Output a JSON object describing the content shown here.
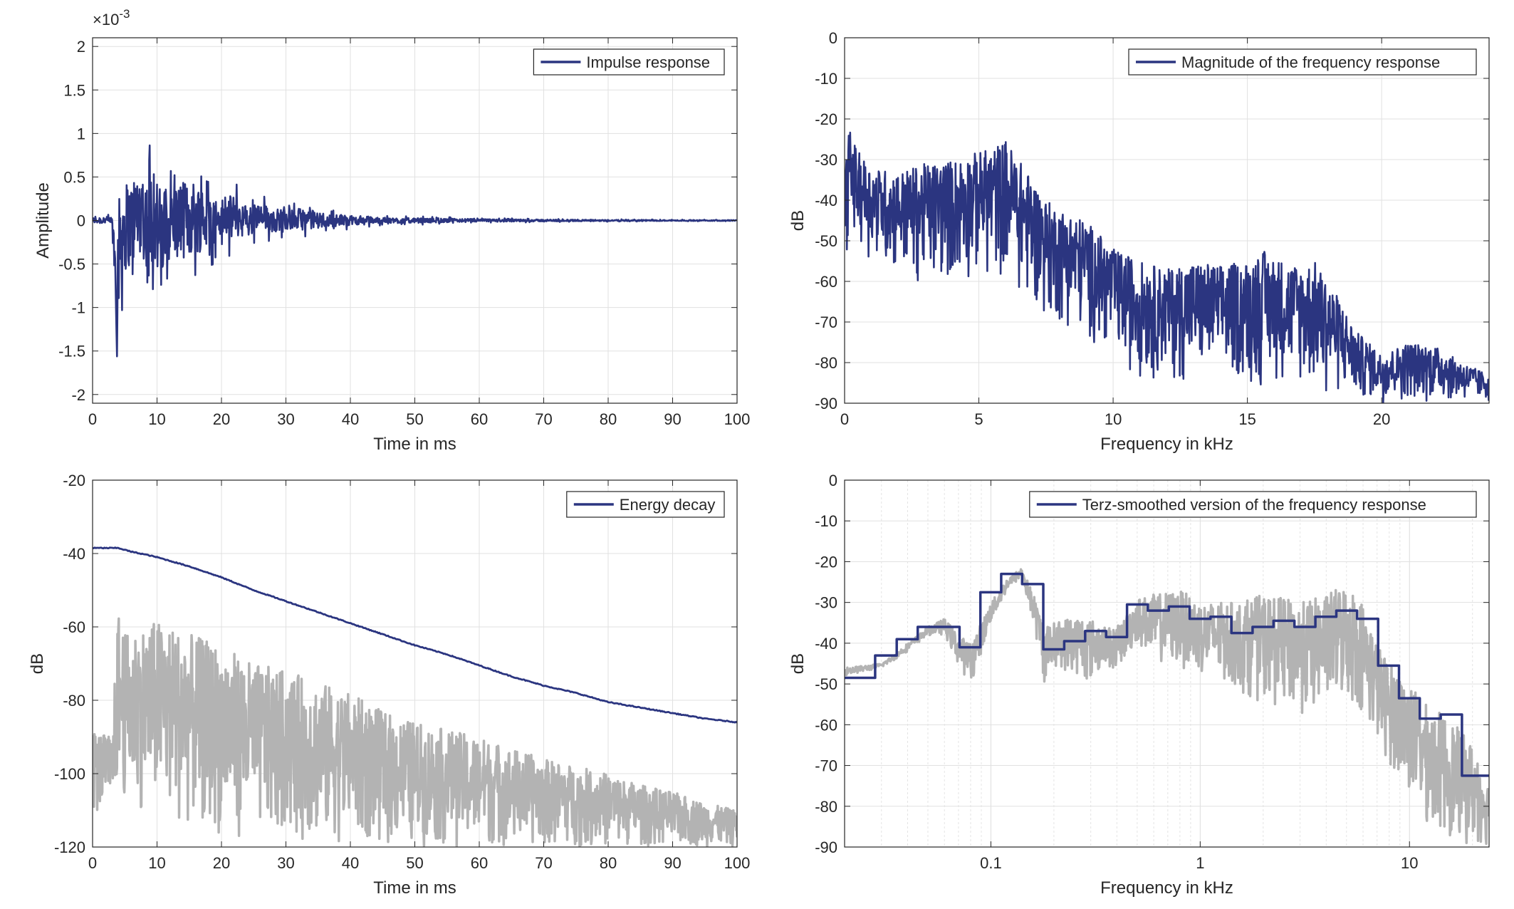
{
  "chart_data": [
    {
      "id": "impulse",
      "type": "line",
      "xlabel": "Time in ms",
      "ylabel": "Amplitude",
      "xlim": [
        0,
        100
      ],
      "ylim": [
        -2.1,
        2.1
      ],
      "xticks": [
        0,
        10,
        20,
        30,
        40,
        50,
        60,
        70,
        80,
        90,
        100
      ],
      "yticks": [
        -2,
        -1.5,
        -1,
        -0.5,
        0,
        0.5,
        1,
        1.5,
        2
      ],
      "ytick_labels": [
        "-2",
        "-1.5",
        "-1",
        "-0.5",
        "0",
        "0.5",
        "1",
        "1.5",
        "2"
      ],
      "y_exponent_label": "×10",
      "y_exponent": "-3",
      "grid": true,
      "legend_position": "top-right",
      "series": [
        {
          "name": "Impulse response",
          "color": "#2b3580",
          "envelope": {
            "x": [
              0,
              3,
              3.7,
              4.5,
              6,
              7.5,
              8.5,
              9.5,
              10.5,
              12,
              14,
              16,
              18,
              20,
              22,
              24,
              26,
              28,
              30,
              32,
              34,
              36,
              38,
              40,
              42,
              45,
              50,
              55,
              60,
              70,
              80,
              90,
              100
            ],
            "upper": [
              0.06,
              0.08,
              0.6,
              0.9,
              0.85,
              1.15,
              0.9,
              1.27,
              0.9,
              0.75,
              0.8,
              0.85,
              0.55,
              0.45,
              0.5,
              0.3,
              0.35,
              0.25,
              0.25,
              0.2,
              0.2,
              0.15,
              0.12,
              0.1,
              0.09,
              0.06,
              0.05,
              0.04,
              0.03,
              0.02,
              0.015,
              0.01,
              0.01
            ],
            "lower": [
              -0.06,
              -0.08,
              -1.88,
              -1.1,
              -0.9,
              -0.85,
              -1.0,
              -0.95,
              -1.42,
              -0.75,
              -0.8,
              -0.75,
              -0.55,
              -0.45,
              -0.4,
              -0.3,
              -0.3,
              -0.25,
              -0.2,
              -0.2,
              -0.18,
              -0.15,
              -0.12,
              -0.1,
              -0.08,
              -0.06,
              -0.05,
              -0.04,
              -0.03,
              -0.02,
              -0.015,
              -0.01,
              -0.01
            ]
          }
        }
      ]
    },
    {
      "id": "magnitude",
      "type": "line",
      "xlabel": "Frequency in kHz",
      "ylabel": "dB",
      "xlim": [
        0,
        24
      ],
      "ylim": [
        -90,
        0
      ],
      "xticks": [
        0,
        5,
        10,
        15,
        20
      ],
      "yticks": [
        0,
        -10,
        -20,
        -30,
        -40,
        -50,
        -60,
        -70,
        -80,
        -90
      ],
      "grid": true,
      "legend_position": "top-right",
      "series": [
        {
          "name": "Magnitude of the frequency response",
          "color": "#2b3580",
          "envelope": {
            "x": [
              0,
              0.15,
              0.5,
              1,
              2,
              3,
              4,
              5,
              5.5,
              6,
              6.5,
              7,
              7.5,
              8,
              9,
              10,
              11,
              12,
              13,
              14,
              15,
              15.5,
              16,
              17,
              17.5,
              18,
              18.5,
              19,
              20,
              21,
              22,
              23,
              24
            ],
            "upper": [
              -35,
              -22,
              -28,
              -32,
              -33,
              -31,
              -30,
              -28,
              -27,
              -25,
              -30,
              -35,
              -40,
              -42,
              -45,
              -52,
              -55,
              -57,
              -55,
              -56,
              -55,
              -52,
              -54,
              -56,
              -55,
              -60,
              -65,
              -72,
              -78,
              -75,
              -76,
              -80,
              -83
            ],
            "lower": [
              -58,
              -50,
              -52,
              -55,
              -60,
              -63,
              -62,
              -60,
              -62,
              -60,
              -65,
              -68,
              -70,
              -72,
              -75,
              -80,
              -85,
              -85,
              -86,
              -85,
              -87,
              -88,
              -86,
              -88,
              -89,
              -90,
              -90,
              -90,
              -90,
              -90,
              -90,
              -90,
              -90
            ]
          }
        }
      ]
    },
    {
      "id": "decay",
      "type": "line",
      "xlabel": "Time in ms",
      "ylabel": "dB",
      "xlim": [
        0,
        100
      ],
      "ylim": [
        -120,
        -20
      ],
      "xticks": [
        0,
        10,
        20,
        30,
        40,
        50,
        60,
        70,
        80,
        90,
        100
      ],
      "yticks": [
        -20,
        -40,
        -60,
        -80,
        -100,
        -120
      ],
      "grid": true,
      "legend_position": "top-right",
      "series": [
        {
          "name": "Energy decay",
          "color": "#2b3580",
          "x": [
            0,
            2,
            4,
            6,
            8,
            10,
            12,
            15,
            20,
            25,
            30,
            35,
            40,
            45,
            50,
            55,
            60,
            65,
            70,
            75,
            80,
            85,
            90,
            95,
            100
          ],
          "y": [
            -38.5,
            -38.5,
            -38.5,
            -39.5,
            -40.2,
            -41,
            -42,
            -43.5,
            -46.5,
            -50,
            -53,
            -56,
            -59,
            -62,
            -65,
            -67.5,
            -70.5,
            -73.5,
            -76,
            -78,
            -80.5,
            -82,
            -83.5,
            -85,
            -86
          ]
        },
        {
          "color": "#b3b3b3",
          "envelope": {
            "x": [
              0,
              3,
              4,
              5,
              10,
              15,
              20,
              25,
              30,
              35,
              40,
              45,
              50,
              55,
              60,
              65,
              70,
              75,
              80,
              85,
              90,
              95,
              100
            ],
            "upper": [
              -88,
              -90,
              -55,
              -62,
              -58,
              -62,
              -65,
              -70,
              -72,
              -75,
              -78,
              -83,
              -86,
              -88,
              -90,
              -93,
              -96,
              -98,
              -100,
              -103,
              -105,
              -108,
              -110
            ],
            "lower": [
              -112,
              -110,
              -105,
              -108,
              -112,
              -115,
              -117,
              -118,
              -118,
              -119,
              -119,
              -120,
              -120,
              -120,
              -120,
              -120,
              -120,
              -120,
              -120,
              -120,
              -120,
              -120,
              -120
            ]
          }
        }
      ]
    },
    {
      "id": "terz",
      "type": "line",
      "xlabel": "Frequency in kHz",
      "ylabel": "dB",
      "xscale": "log",
      "xlim": [
        0.02,
        24
      ],
      "ylim": [
        -90,
        0
      ],
      "xticks": [
        0.1,
        1,
        10
      ],
      "xtick_labels": [
        "0.1",
        "1",
        "10"
      ],
      "yticks": [
        0,
        -10,
        -20,
        -30,
        -40,
        -50,
        -60,
        -70,
        -80,
        -90
      ],
      "grid": true,
      "legend_position": "top-right",
      "series": [
        {
          "name": "Terz-smoothed version of the frequency response",
          "color": "#2b3580",
          "step": {
            "edges": [
              0.02,
              0.028,
              0.0355,
              0.0447,
              0.0562,
              0.0708,
              0.0891,
              0.112,
              0.141,
              0.178,
              0.224,
              0.282,
              0.355,
              0.447,
              0.562,
              0.708,
              0.891,
              1.12,
              1.41,
              1.78,
              2.24,
              2.82,
              3.55,
              4.47,
              5.62,
              7.08,
              8.91,
              11.2,
              14.1,
              17.8,
              24
            ],
            "values": [
              -48.5,
              -43,
              -39,
              -36,
              -36,
              -41,
              -27.5,
              -23,
              -25.5,
              -41.5,
              -39.5,
              -37,
              -38.5,
              -30.5,
              -32,
              -31,
              -34,
              -33.5,
              -37.5,
              -36,
              -34.5,
              -36,
              -33.5,
              -32,
              -34,
              -45.5,
              -53.5,
              -58.5,
              -57.5,
              -72.5
            ]
          }
        },
        {
          "color": "#b3b3b3",
          "envelope": {
            "x": [
              0.02,
              0.03,
              0.04,
              0.05,
              0.06,
              0.07,
              0.08,
              0.1,
              0.12,
              0.14,
              0.16,
              0.18,
              0.2,
              0.25,
              0.3,
              0.35,
              0.4,
              0.5,
              0.6,
              0.8,
              1,
              1.5,
              2,
              3,
              4,
              5,
              6,
              7,
              8,
              10,
              12,
              15,
              20,
              24
            ],
            "upper": [
              -46,
              -45,
              -40,
              -36,
              -34,
              -38,
              -40,
              -30,
              -24,
              -21.5,
              -28,
              -36,
              -35,
              -33,
              -34,
              -36,
              -36,
              -29,
              -28,
              -27,
              -30,
              -30,
              -28,
              -30,
              -28,
              -25,
              -30,
              -40,
              -45,
              -50,
              -55,
              -58,
              -65,
              -75
            ],
            "lower": [
              -48,
              -46,
              -42,
              -38,
              -38,
              -46,
              -50,
              -35,
              -27,
              -24,
              -36,
              -50,
              -46,
              -48,
              -50,
              -46,
              -47,
              -40,
              -45,
              -46,
              -48,
              -52,
              -55,
              -58,
              -56,
              -55,
              -58,
              -65,
              -70,
              -78,
              -85,
              -88,
              -90,
              -90
            ]
          }
        }
      ]
    }
  ]
}
